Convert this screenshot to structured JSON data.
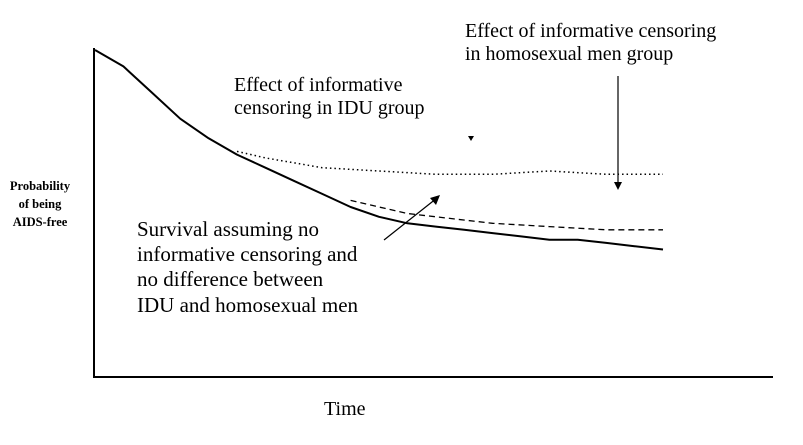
{
  "figure": {
    "y_axis_label_lines": [
      "Probability",
      "of being",
      "AIDS-free"
    ],
    "x_axis_label": "Time",
    "annotations": {
      "homosexual": [
        "Effect of informative censoring",
        "in homosexual men group"
      ],
      "idu": [
        "Effect of informative",
        "censoring in IDU group"
      ],
      "survival": [
        "Survival assuming no",
        "informative censoring and",
        "no difference between",
        "IDU and homosexual men"
      ]
    }
  },
  "chart_data": {
    "type": "line",
    "xlabel": "Time",
    "ylabel": "Probability of being AIDS-free",
    "grid": false,
    "ticks": "none",
    "series": [
      {
        "line_style": "solid",
        "points": [
          [
            0.0,
            1.0
          ],
          [
            0.05,
            0.95
          ],
          [
            0.1,
            0.87
          ],
          [
            0.15,
            0.79
          ],
          [
            0.2,
            0.73
          ],
          [
            0.25,
            0.68
          ],
          [
            0.3,
            0.64
          ],
          [
            0.35,
            0.6
          ],
          [
            0.4,
            0.56
          ],
          [
            0.45,
            0.52
          ],
          [
            0.5,
            0.49
          ],
          [
            0.55,
            0.47
          ],
          [
            0.6,
            0.46
          ],
          [
            0.65,
            0.45
          ],
          [
            0.7,
            0.44
          ],
          [
            0.75,
            0.43
          ],
          [
            0.8,
            0.42
          ],
          [
            0.85,
            0.42
          ],
          [
            0.9,
            0.41
          ],
          [
            0.95,
            0.4
          ],
          [
            1.0,
            0.39
          ]
        ]
      },
      {
        "line_style": "dotted",
        "points": [
          [
            0.25,
            0.69
          ],
          [
            0.3,
            0.67
          ],
          [
            0.4,
            0.64
          ],
          [
            0.5,
            0.63
          ],
          [
            0.6,
            0.62
          ],
          [
            0.7,
            0.62
          ],
          [
            0.8,
            0.63
          ],
          [
            0.9,
            0.62
          ],
          [
            1.0,
            0.62
          ]
        ]
      },
      {
        "line_style": "dashed",
        "points": [
          [
            0.45,
            0.54
          ],
          [
            0.5,
            0.52
          ],
          [
            0.55,
            0.5
          ],
          [
            0.6,
            0.49
          ],
          [
            0.7,
            0.47
          ],
          [
            0.8,
            0.46
          ],
          [
            0.9,
            0.45
          ],
          [
            1.0,
            0.45
          ]
        ]
      }
    ]
  }
}
